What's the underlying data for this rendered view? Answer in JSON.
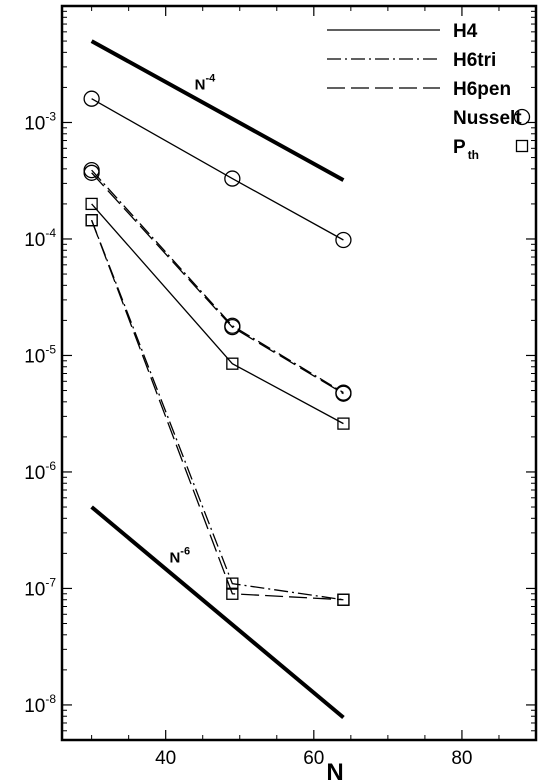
{
  "chart_data": {
    "type": "line",
    "xlabel": "N",
    "ylabel": "",
    "xscale": "linear",
    "yscale": "log",
    "xlim": [
      26,
      90
    ],
    "ylim": [
      5e-09,
      0.01
    ],
    "grid": false,
    "legend_position": "top-right",
    "x_ticks": [
      {
        "value": 40,
        "label": "40"
      },
      {
        "value": 60,
        "label": "60"
      },
      {
        "value": 80,
        "label": "80"
      }
    ],
    "y_ticks": [
      {
        "value": 1e-08,
        "base": "10",
        "exp": "-8"
      },
      {
        "value": 1e-07,
        "base": "10",
        "exp": "-7"
      },
      {
        "value": 1e-06,
        "base": "10",
        "exp": "-6"
      },
      {
        "value": 1e-05,
        "base": "10",
        "exp": "-5"
      },
      {
        "value": 0.0001,
        "base": "10",
        "exp": "-4"
      },
      {
        "value": 0.001,
        "base": "10",
        "exp": "-3"
      }
    ],
    "line_styles": [
      {
        "name": "H4",
        "dash": "solid"
      },
      {
        "name": "H6tri",
        "dash": "dashdot"
      },
      {
        "name": "H6pen",
        "dash": "longdash"
      }
    ],
    "marker_types": [
      {
        "name": "Nusselt",
        "marker": "circle"
      },
      {
        "name": "P",
        "sub": "th",
        "marker": "square"
      }
    ],
    "series": [
      {
        "line": "solid",
        "marker": "circle",
        "x": [
          30,
          49,
          64
        ],
        "y": [
          0.0016,
          0.00033,
          9.8e-05
        ]
      },
      {
        "line": "dashdot",
        "marker": "circle",
        "x": [
          30,
          49,
          64
        ],
        "y": [
          0.00039,
          1.8e-05,
          4.8e-06
        ]
      },
      {
        "line": "longdash",
        "marker": "circle",
        "x": [
          30,
          49,
          64
        ],
        "y": [
          0.00037,
          1.75e-05,
          4.7e-06
        ]
      },
      {
        "line": "solid",
        "marker": "square",
        "x": [
          30,
          49,
          64
        ],
        "y": [
          0.0002,
          8.5e-06,
          2.6e-06
        ]
      },
      {
        "line": "dashdot",
        "marker": "square",
        "x": [
          30,
          49,
          64
        ],
        "y": [
          0.000145,
          1.1e-07,
          8e-08
        ]
      },
      {
        "line": "longdash",
        "marker": "square",
        "x": [
          30,
          49,
          64
        ],
        "y": [
          0.000145,
          9e-08,
          8e-08
        ]
      }
    ],
    "reference_lines": [
      {
        "label": "N",
        "exp": "-4",
        "x": [
          30,
          64
        ],
        "y": [
          0.005,
          0.00032
        ]
      },
      {
        "label": "N",
        "exp": "-6",
        "x": [
          30,
          64
        ],
        "y": [
          5e-07,
          7.8e-09
        ]
      }
    ]
  }
}
